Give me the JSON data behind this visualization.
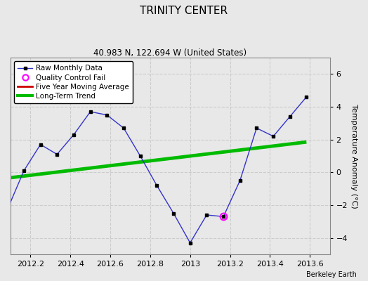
{
  "title": "TRINITY CENTER",
  "subtitle": "40.983 N, 122.694 W (United States)",
  "credit": "Berkeley Earth",
  "ylabel": "Temperature Anomaly (°C)",
  "xlim": [
    2012.1,
    2013.7
  ],
  "ylim": [
    -5,
    7
  ],
  "yticks": [
    -4,
    -2,
    0,
    2,
    4,
    6
  ],
  "xticks": [
    2012.2,
    2012.4,
    2012.6,
    2012.8,
    2013.0,
    2013.2,
    2013.4,
    2013.6
  ],
  "xtick_labels": [
    "2012.2",
    "2012.4",
    "2012.6",
    "2012.8",
    "2013",
    "2013.2",
    "2013.4",
    "2013.6"
  ],
  "background_color": "#e8e8e8",
  "plot_bg_color": "#e8e8e8",
  "raw_x": [
    2012.083,
    2012.167,
    2012.25,
    2012.333,
    2012.417,
    2012.5,
    2012.583,
    2012.667,
    2012.75,
    2012.833,
    2012.917,
    2013.0,
    2013.083,
    2013.167,
    2013.25,
    2013.333,
    2013.417,
    2013.5,
    2013.583
  ],
  "raw_y": [
    -2.3,
    0.1,
    1.7,
    1.1,
    2.3,
    3.7,
    3.5,
    2.7,
    1.0,
    -0.8,
    -2.5,
    -4.3,
    -2.6,
    -2.7,
    -0.5,
    2.7,
    2.2,
    3.4,
    4.6
  ],
  "qc_fail_x": [
    2013.167
  ],
  "qc_fail_y": [
    -2.7
  ],
  "trend_x": [
    2012.083,
    2013.583
  ],
  "trend_y": [
    -0.35,
    1.85
  ],
  "raw_color": "#3333cc",
  "raw_marker_color": "#000000",
  "trend_color": "#00bb00",
  "moving_avg_color": "#cc0000",
  "qc_color": "#ff00ff",
  "grid_color": "#cccccc",
  "title_fontsize": 11,
  "subtitle_fontsize": 8.5,
  "tick_fontsize": 8,
  "ylabel_fontsize": 8,
  "legend_fontsize": 7.5,
  "credit_fontsize": 7
}
